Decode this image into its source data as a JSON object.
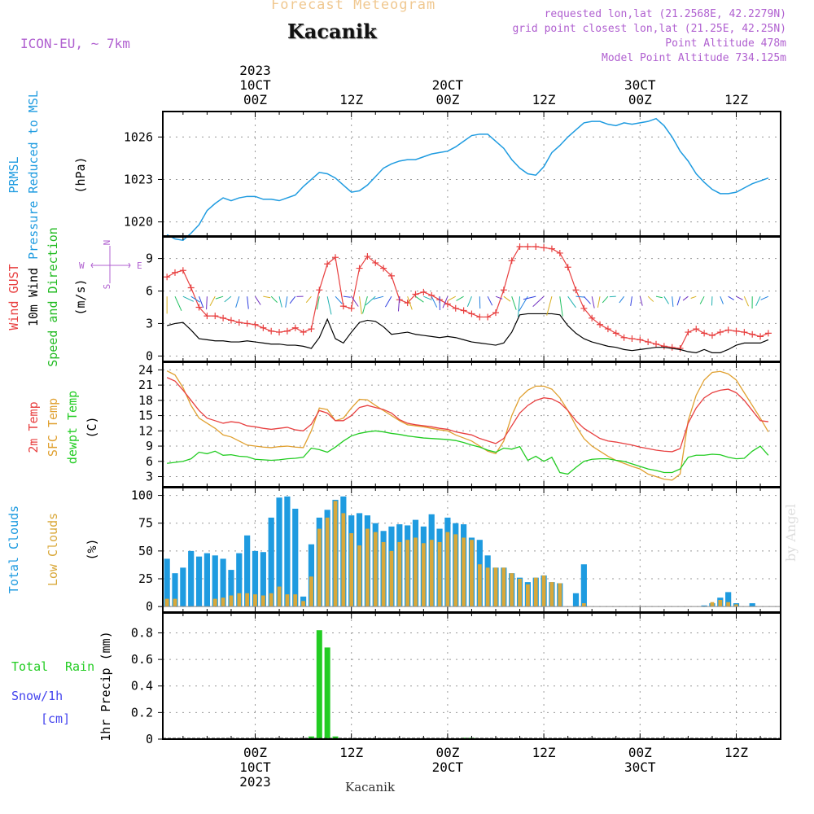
{
  "header": {
    "title_faded": "Forecast Meteogram",
    "location": "Kacanik",
    "model": "ICON-EU, ~ 7km",
    "requested": "requested lon,lat (21.2568E, 42.2279N)",
    "closest": "grid point closest lon,lat (21.25E, 42.25N)",
    "point_alt": "Point Altitude 478m",
    "model_alt": "Model Point Altitude 734.125m"
  },
  "footer": {
    "location": "Kacanik",
    "credit": "by Angel"
  },
  "axis_top": {
    "labels": [
      {
        "hour": 0,
        "lines": [
          "2023",
          "10CT",
          "00Z"
        ]
      },
      {
        "hour": 12,
        "lines": [
          "12Z"
        ]
      },
      {
        "hour": 24,
        "lines": [
          "20CT",
          "00Z"
        ]
      },
      {
        "hour": 36,
        "lines": [
          "12Z"
        ]
      },
      {
        "hour": 48,
        "lines": [
          "30CT",
          "00Z"
        ]
      },
      {
        "hour": 60,
        "lines": [
          "12Z"
        ]
      }
    ]
  },
  "axis_bottom": {
    "labels": [
      {
        "hour": 0,
        "lines": [
          "00Z",
          "10CT",
          "2023"
        ]
      },
      {
        "hour": 12,
        "lines": [
          "12Z"
        ]
      },
      {
        "hour": 24,
        "lines": [
          "00Z",
          "20CT"
        ]
      },
      {
        "hour": 36,
        "lines": [
          "12Z"
        ]
      },
      {
        "hour": 48,
        "lines": [
          "00Z",
          "30CT"
        ]
      },
      {
        "hour": 60,
        "lines": [
          "12Z"
        ]
      }
    ]
  },
  "compass": {
    "n": "N",
    "s": "S",
    "w": "W",
    "e": "E"
  },
  "colors": {
    "pressure": "#1e9be0",
    "gust": "#e84040",
    "wind": "#000000",
    "wind_dir_label": "#22bb22",
    "temp2m": "#e84040",
    "sfc": "#e0a030",
    "dew": "#22cc22",
    "clouds_total": "#1e9be0",
    "clouds_low": "#d9a83a",
    "rain": "#22cc22",
    "snow": "#4444ee",
    "accent": "#b060d0",
    "faded_title": "#f0c890",
    "grid": "#999999"
  },
  "chart_data": [
    {
      "type": "line",
      "ylabels": [
        "PRMSL",
        "Pressure Reduced to MSL",
        "(hPa)"
      ],
      "y_ticks": [
        "1020",
        "1023",
        "1026"
      ],
      "ylim": [
        1019,
        1027.8
      ],
      "x_hours": [
        -11,
        -10,
        -9,
        -8,
        -7,
        -6,
        -5,
        -4,
        -3,
        -2,
        -1,
        0,
        1,
        2,
        3,
        4,
        5,
        6,
        7,
        8,
        9,
        10,
        11,
        12,
        13,
        14,
        15,
        16,
        17,
        18,
        19,
        20,
        21,
        22,
        23,
        24,
        25,
        26,
        27,
        28,
        29,
        30,
        31,
        32,
        33,
        34,
        35,
        36,
        37,
        38,
        39,
        40,
        41,
        42,
        43,
        44,
        45,
        46,
        47,
        48,
        49,
        50,
        51,
        52,
        53,
        54,
        55,
        56,
        57,
        58,
        59,
        60,
        61,
        62,
        63,
        64
      ],
      "series": [
        {
          "values": [
            1019.1,
            1018.8,
            1018.7,
            1019.2,
            1019.8,
            1020.8,
            1021.3,
            1021.7,
            1021.5,
            1021.7,
            1021.8,
            1021.8,
            1021.6,
            1021.6,
            1021.5,
            1021.7,
            1021.9,
            1022.5,
            1023.0,
            1023.5,
            1023.4,
            1023.1,
            1022.6,
            1022.1,
            1022.2,
            1022.6,
            1023.2,
            1023.8,
            1024.1,
            1024.3,
            1024.4,
            1024.4,
            1024.6,
            1024.8,
            1024.9,
            1025.0,
            1025.3,
            1025.7,
            1026.1,
            1026.2,
            1026.2,
            1025.7,
            1025.2,
            1024.4,
            1023.8,
            1023.4,
            1023.3,
            1023.9,
            1024.9,
            1025.4,
            1026.0,
            1026.5,
            1027.0,
            1027.1,
            1027.1,
            1026.9,
            1026.8,
            1027.0,
            1026.9,
            1027.0,
            1027.1,
            1027.3,
            1026.8,
            1026.0,
            1025.0,
            1024.3,
            1023.4,
            1022.8,
            1022.3,
            1022.0,
            1022.0,
            1022.1,
            1022.4,
            1022.7,
            1022.9,
            1023.1
          ]
        }
      ]
    },
    {
      "type": "line",
      "ylabels": [
        "Wind GUST",
        "10m Wind",
        "Speed and Direction",
        "(m/s)"
      ],
      "y_ticks": [
        "0",
        "3",
        "6",
        "9"
      ],
      "ylim": [
        -0.5,
        11
      ],
      "x_hours": [
        -11,
        -10,
        -9,
        -8,
        -7,
        -6,
        -5,
        -4,
        -3,
        -2,
        -1,
        0,
        1,
        2,
        3,
        4,
        5,
        6,
        7,
        8,
        9,
        10,
        11,
        12,
        13,
        14,
        15,
        16,
        17,
        18,
        19,
        20,
        21,
        22,
        23,
        24,
        25,
        26,
        27,
        28,
        29,
        30,
        31,
        32,
        33,
        34,
        35,
        36,
        37,
        38,
        39,
        40,
        41,
        42,
        43,
        44,
        45,
        46,
        47,
        48,
        49,
        50,
        51,
        52,
        53,
        54,
        55,
        56,
        57,
        58,
        59,
        60,
        61,
        62,
        63,
        64
      ],
      "series": [
        {
          "name": "Wind GUST",
          "values": [
            7.3,
            7.7,
            7.9,
            6.3,
            4.5,
            3.7,
            3.7,
            3.5,
            3.3,
            3.1,
            3.0,
            2.9,
            2.6,
            2.3,
            2.2,
            2.3,
            2.6,
            2.2,
            2.5,
            6.1,
            8.5,
            9.1,
            4.6,
            4.4,
            8.1,
            9.2,
            8.6,
            8.1,
            7.4,
            5.2,
            4.9,
            5.7,
            5.9,
            5.6,
            5.2,
            4.8,
            4.4,
            4.2,
            3.9,
            3.6,
            3.6,
            4.0,
            6.1,
            8.8,
            10.1,
            10.1,
            10.1,
            10.0,
            9.9,
            9.5,
            8.2,
            6.1,
            4.4,
            3.5,
            2.9,
            2.5,
            2.1,
            1.7,
            1.6,
            1.5,
            1.3,
            1.1,
            0.9,
            0.8,
            0.7,
            2.2,
            2.5,
            2.1,
            1.9,
            2.2,
            2.4,
            2.3,
            2.2,
            2.0,
            1.8,
            2.1
          ]
        },
        {
          "name": "10m Wind",
          "values": [
            2.8,
            3.0,
            3.1,
            2.4,
            1.6,
            1.5,
            1.4,
            1.4,
            1.3,
            1.3,
            1.4,
            1.3,
            1.2,
            1.1,
            1.1,
            1.0,
            1.0,
            0.9,
            0.7,
            1.7,
            3.4,
            1.6,
            1.2,
            2.2,
            3.1,
            3.3,
            3.2,
            2.7,
            2.0,
            2.1,
            2.2,
            2.0,
            1.9,
            1.8,
            1.7,
            1.8,
            1.7,
            1.5,
            1.3,
            1.2,
            1.1,
            1.0,
            1.2,
            2.2,
            3.8,
            3.9,
            3.9,
            3.9,
            3.9,
            3.8,
            2.8,
            2.1,
            1.6,
            1.3,
            1.1,
            0.9,
            0.8,
            0.6,
            0.5,
            0.6,
            0.7,
            0.8,
            0.8,
            0.7,
            0.6,
            0.4,
            0.3,
            0.6,
            0.3,
            0.3,
            0.6,
            1.0,
            1.2,
            1.2,
            1.2,
            1.5
          ]
        }
      ]
    },
    {
      "type": "line",
      "ylabels": [
        "2m Temp",
        "SFC Temp",
        "dewpt Temp",
        "(C)"
      ],
      "y_ticks": [
        "3",
        "6",
        "9",
        "12",
        "15",
        "18",
        "21",
        "24"
      ],
      "ylim": [
        1,
        25.5
      ],
      "x_hours": [
        -11,
        -10,
        -9,
        -8,
        -7,
        -6,
        -5,
        -4,
        -3,
        -2,
        -1,
        0,
        1,
        2,
        3,
        4,
        5,
        6,
        7,
        8,
        9,
        10,
        11,
        12,
        13,
        14,
        15,
        16,
        17,
        18,
        19,
        20,
        21,
        22,
        23,
        24,
        25,
        26,
        27,
        28,
        29,
        30,
        31,
        32,
        33,
        34,
        35,
        36,
        37,
        38,
        39,
        40,
        41,
        42,
        43,
        44,
        45,
        46,
        47,
        48,
        49,
        50,
        51,
        52,
        53,
        54,
        55,
        56,
        57,
        58,
        59,
        60,
        61,
        62,
        63,
        64
      ],
      "series": [
        {
          "name": "2m Temp",
          "values": [
            22.5,
            21.8,
            20.0,
            18.0,
            16.0,
            14.5,
            14.0,
            13.5,
            13.8,
            13.6,
            13.0,
            12.8,
            12.5,
            12.3,
            12.5,
            12.7,
            12.2,
            12.0,
            13.3,
            16.0,
            15.5,
            14.0,
            14.0,
            15.0,
            16.6,
            17.0,
            16.6,
            16.2,
            15.5,
            14.2,
            13.5,
            13.2,
            13.0,
            12.8,
            12.5,
            12.3,
            11.8,
            11.5,
            11.2,
            10.5,
            10.0,
            9.5,
            10.5,
            13.0,
            15.5,
            17.0,
            18.0,
            18.5,
            18.3,
            17.5,
            16.0,
            14.0,
            12.5,
            11.5,
            10.5,
            10.0,
            9.8,
            9.5,
            9.2,
            8.8,
            8.5,
            8.2,
            8.0,
            7.9,
            8.5,
            13.5,
            16.5,
            18.5,
            19.5,
            20.0,
            20.2,
            19.5,
            18.0,
            16.0,
            14.0,
            13.8
          ]
        },
        {
          "name": "SFC Temp",
          "values": [
            23.8,
            23.0,
            20.5,
            17.0,
            14.5,
            13.5,
            12.5,
            11.2,
            10.8,
            10.0,
            9.2,
            9.0,
            8.8,
            8.7,
            8.9,
            9.0,
            8.8,
            8.7,
            12.0,
            16.5,
            16.2,
            14.0,
            14.5,
            16.5,
            18.2,
            18.1,
            17.0,
            16.0,
            15.0,
            14.0,
            13.2,
            13.0,
            12.8,
            12.5,
            12.2,
            12.0,
            11.2,
            10.6,
            10.0,
            9.0,
            8.0,
            7.5,
            10.0,
            15.0,
            18.5,
            20.0,
            20.8,
            20.8,
            20.2,
            18.5,
            16.0,
            13.0,
            10.5,
            9.0,
            8.0,
            7.0,
            6.2,
            5.6,
            5.0,
            4.5,
            3.5,
            3.0,
            2.5,
            2.3,
            3.5,
            14.0,
            19.0,
            22.0,
            23.5,
            23.7,
            23.2,
            22.0,
            19.5,
            17.0,
            14.5,
            11.8
          ]
        },
        {
          "name": "dewpt Temp",
          "values": [
            5.6,
            5.8,
            6.0,
            6.5,
            7.8,
            7.5,
            8.0,
            7.2,
            7.3,
            7.0,
            6.9,
            6.4,
            6.3,
            6.2,
            6.3,
            6.5,
            6.6,
            6.8,
            8.6,
            8.3,
            7.8,
            8.8,
            10.0,
            11.0,
            11.5,
            11.8,
            12.0,
            11.8,
            11.5,
            11.3,
            11.0,
            10.8,
            10.6,
            10.5,
            10.4,
            10.3,
            10.1,
            9.7,
            9.2,
            8.8,
            8.2,
            7.8,
            8.6,
            8.4,
            8.9,
            6.2,
            7.0,
            6.0,
            6.8,
            3.8,
            3.5,
            4.8,
            6.0,
            6.4,
            6.5,
            6.5,
            6.2,
            6.0,
            5.5,
            5.0,
            4.5,
            4.2,
            3.8,
            3.8,
            4.5,
            6.8,
            7.2,
            7.2,
            7.4,
            7.3,
            6.8,
            6.5,
            6.6,
            8.0,
            9.0,
            7.2
          ]
        }
      ]
    },
    {
      "type": "bar",
      "ylabels": [
        "Total Clouds",
        "Low Clouds",
        "(%)"
      ],
      "y_ticks": [
        "0",
        "25",
        "50",
        "75",
        "100"
      ],
      "ylim": [
        -5,
        107
      ],
      "x_hours": [
        -11,
        -10,
        -9,
        -8,
        -7,
        -6,
        -5,
        -4,
        -3,
        -2,
        -1,
        0,
        1,
        2,
        3,
        4,
        5,
        6,
        7,
        8,
        9,
        10,
        11,
        12,
        13,
        14,
        15,
        16,
        17,
        18,
        19,
        20,
        21,
        22,
        23,
        24,
        25,
        26,
        27,
        28,
        29,
        30,
        31,
        32,
        33,
        34,
        35,
        36,
        37,
        38,
        39,
        40,
        41,
        42,
        43,
        44,
        45,
        46,
        47,
        48,
        49,
        50,
        51,
        52,
        53,
        54,
        55,
        56,
        57,
        58,
        59,
        60,
        61,
        62,
        63,
        64
      ],
      "series": [
        {
          "name": "Total Clouds",
          "values": [
            43,
            30,
            35,
            50,
            45,
            48,
            46,
            43,
            33,
            48,
            64,
            50,
            49,
            80,
            98,
            99,
            88,
            9,
            56,
            80,
            87,
            96,
            99,
            82,
            84,
            82,
            75,
            68,
            72,
            74,
            73,
            78,
            72,
            83,
            70,
            80,
            75,
            74,
            62,
            60,
            46,
            35,
            35,
            30,
            26,
            22,
            26,
            28,
            22,
            21,
            0,
            12,
            38,
            0,
            0,
            0,
            0,
            0,
            0,
            0,
            0,
            0,
            0,
            0,
            0,
            0,
            0,
            1,
            3,
            8,
            13,
            3,
            0,
            3,
            0,
            0
          ]
        },
        {
          "name": "Low Clouds",
          "values": [
            7,
            7,
            0,
            0,
            0,
            0,
            7,
            8,
            10,
            12,
            12,
            11,
            10,
            12,
            18,
            11,
            11,
            5,
            27,
            70,
            80,
            95,
            84,
            66,
            55,
            70,
            67,
            58,
            50,
            58,
            60,
            62,
            57,
            60,
            58,
            67,
            65,
            62,
            60,
            38,
            35,
            35,
            35,
            30,
            25,
            20,
            26,
            28,
            22,
            21,
            0,
            0,
            3,
            0,
            0,
            0,
            0,
            0,
            0,
            0,
            0,
            0,
            0,
            0,
            0,
            0,
            0,
            0,
            4,
            6,
            4,
            2,
            0,
            0,
            0,
            0
          ]
        }
      ]
    },
    {
      "type": "bar",
      "ylabels": [
        "1hr Precip (mm)"
      ],
      "side_labels": [
        "Total",
        "Rain",
        "Snow/1h",
        "[cm]"
      ],
      "y_ticks": [
        "0",
        "0.2",
        "0.4",
        "0.6",
        "0.8"
      ],
      "ylim": [
        0,
        0.95
      ],
      "x_hours": [
        7,
        8,
        9,
        10,
        26,
        27
      ],
      "series": [
        {
          "name": "Total Rain",
          "values": [
            0.02,
            0.82,
            0.69,
            0.02,
            0.01,
            0.01
          ]
        }
      ]
    }
  ]
}
